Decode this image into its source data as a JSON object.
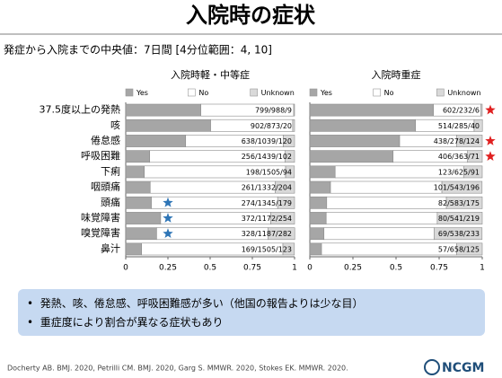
{
  "title": "入院時の症状",
  "subtitle": "発症から入院までの中央値：7日間 [4分位範囲：4, 10]",
  "bullets": [
    "発熱、咳、倦怠感、呼吸困難感が多い（他国の報告よりは少な目）",
    "重症度により割合が異なる症状もあり"
  ],
  "citation": "Docherty AB. BMJ. 2020, Petrilli CM. BMJ. 2020, Garg S. MMWR. 2020, Stokes EK. MMWR. 2020.",
  "logo": "NCGM",
  "chart_data": [
    {
      "type": "stacked-barh",
      "title": "入院時軽・中等症",
      "categories": [
        "37.5度以上の発熱",
        "咳",
        "倦怠感",
        "呼吸困難",
        "下痢",
        "咽頭痛",
        "頭痛",
        "味覚障害",
        "嗅覚障害",
        "鼻汁"
      ],
      "series": [
        {
          "name": "Yes",
          "color": "#a6a6a6",
          "values": [
            0.445,
            0.503,
            0.355,
            0.142,
            0.11,
            0.145,
            0.152,
            0.207,
            0.183,
            0.094
          ]
        },
        {
          "name": "No",
          "color": "#ffffff",
          "values": [
            0.55,
            0.486,
            0.578,
            0.801,
            0.837,
            0.741,
            0.748,
            0.652,
            0.661,
            0.837
          ]
        },
        {
          "name": "Unknown",
          "color": "#d9d9d9",
          "values": [
            0.005,
            0.011,
            0.067,
            0.057,
            0.052,
            0.114,
            0.1,
            0.141,
            0.157,
            0.068
          ]
        }
      ],
      "count_labels": [
        "799/988/9",
        "902/873/20",
        "638/1039/120",
        "256/1439/102",
        "198/1505/94",
        "261/1332/204",
        "274/1345/179",
        "372/1172/254",
        "328/1187/282",
        "169/1505/123"
      ],
      "starred": [
        false,
        false,
        false,
        false,
        false,
        false,
        true,
        true,
        true,
        false
      ],
      "star_color": "#2e75b6",
      "xlim": [
        0,
        1
      ],
      "xticks": [
        0,
        0.25,
        0.5,
        0.75,
        1
      ]
    },
    {
      "type": "stacked-barh",
      "title": "入院時重症",
      "series": [
        {
          "name": "Yes",
          "color": "#a6a6a6",
          "values": [
            0.717,
            0.613,
            0.521,
            0.483,
            0.147,
            0.12,
            0.098,
            0.095,
            0.082,
            0.068
          ]
        },
        {
          "name": "No",
          "color": "#ffffff",
          "values": [
            0.276,
            0.34,
            0.331,
            0.432,
            0.745,
            0.646,
            0.694,
            0.644,
            0.64,
            0.783
          ]
        },
        {
          "name": "Unknown",
          "color": "#d9d9d9",
          "values": [
            0.007,
            0.048,
            0.148,
            0.085,
            0.108,
            0.233,
            0.208,
            0.261,
            0.277,
            0.149
          ]
        }
      ],
      "count_labels": [
        "602/232/6",
        "514/285/40",
        "438/278/124",
        "406/363/71",
        "123/625/91",
        "101/543/196",
        "82/583/175",
        "80/541/219",
        "69/538/233",
        "57/658/125"
      ],
      "starred": [
        true,
        false,
        true,
        true,
        false,
        false,
        false,
        false,
        false,
        false
      ],
      "star_color": "#e02020",
      "xlim": [
        0,
        1
      ],
      "xticks": [
        0,
        0.25,
        0.5,
        0.75,
        1
      ]
    }
  ]
}
